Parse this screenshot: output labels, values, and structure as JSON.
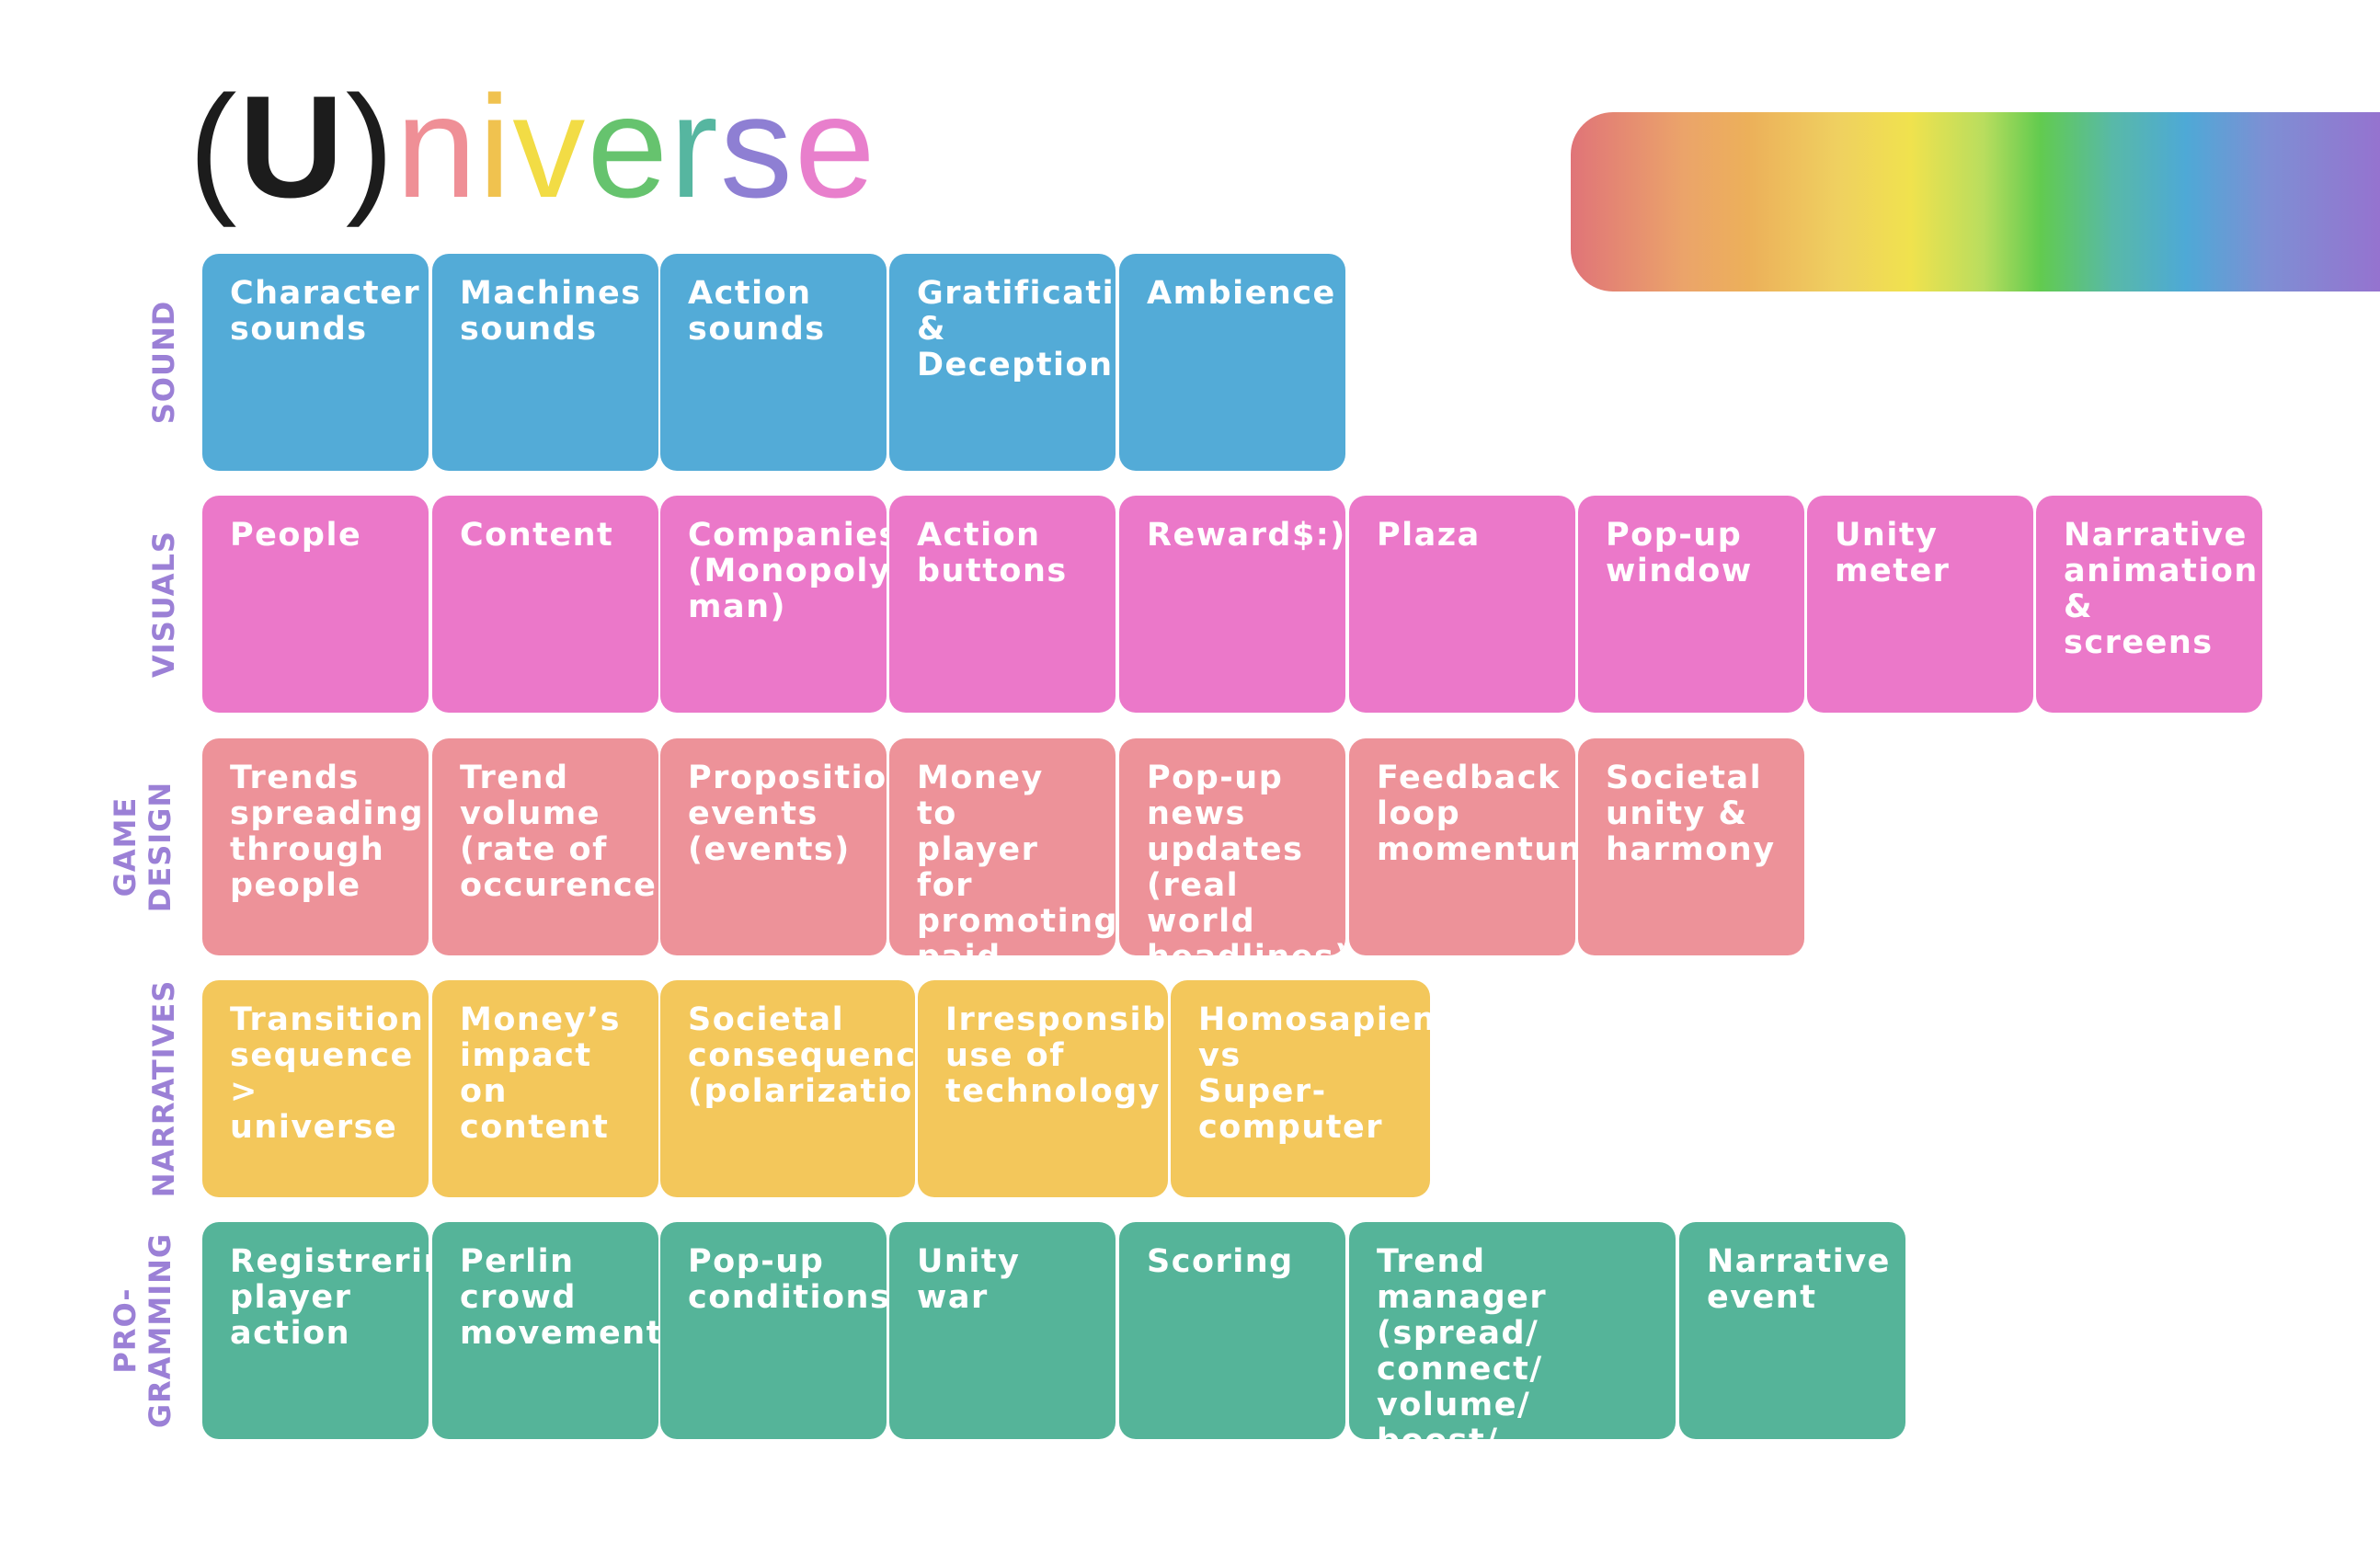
{
  "logo": {
    "paren_open": "(",
    "u": "U",
    "paren_close": ")",
    "letters": [
      {
        "ch": "n",
        "color": "#ef8f96"
      },
      {
        "ch": "i",
        "color": "#f0c24f"
      },
      {
        "ch": "v",
        "color": "#f2dc45"
      },
      {
        "ch": "e",
        "color": "#66c36e"
      },
      {
        "ch": "r",
        "color": "#56b6a0"
      },
      {
        "ch": "s",
        "color": "#8e7fd3"
      },
      {
        "ch": "e",
        "color": "#e87fcc"
      }
    ]
  },
  "rows": [
    {
      "label": [
        "SOUND"
      ],
      "color": "#53abd7",
      "cells": [
        "Character\nsounds",
        "Machines\nsounds",
        "Action\nsounds",
        "Gratification\n& Deception",
        "Ambience"
      ]
    },
    {
      "label": [
        "VISUALS"
      ],
      "color": "#eb78c9",
      "cells": [
        "People",
        "Content",
        "Companies\n(Monopoly\nman)",
        "Action\nbuttons",
        "Reward$:)",
        "Plaza",
        "Pop-up\nwindow",
        "Unity\nmeter",
        "Narrative\nanimation\n& screens"
      ]
    },
    {
      "label": [
        "GAME",
        "DESIGN"
      ],
      "color": "#ed9299",
      "cells": [
        "Trends\nspreading\nthrough\npeople",
        "Trend\nvolume\n(rate of\noccurence)",
        "Proposition\nevents\n(events)",
        "Money to\nplayer for\npromoting\npaid content",
        "Pop-up\nnews\nupdates\n(real world\nheadlines)",
        "Feedback\nloop\nmomentum",
        "Societal\nunity &\nharmony"
      ]
    },
    {
      "label": [
        "NARRATIVES"
      ],
      "color": "#f3c75b",
      "cells": [
        "Transition\nsequence >\nuniverse",
        "Money’s\nimpact on\ncontent",
        "Societal\nconsequences\n(polarization)",
        "Irresponsible\nuse of\ntechnology",
        "Homosapien\nvs\nSuper-\ncomputer"
      ]
    },
    {
      "label": [
        "PRO-",
        "GRAMMING"
      ],
      "color": "#55b499",
      "cells": [
        "Registrering\nplayer\naction",
        "Perlin\ncrowd\nmovement",
        "Pop-up\nconditions",
        "Unity war",
        "Scoring",
        "Trend\nmanager\n(spread/ connect/\nvolume/ boost/\nkind/ variety)",
        "Narrative\nevent"
      ]
    }
  ]
}
